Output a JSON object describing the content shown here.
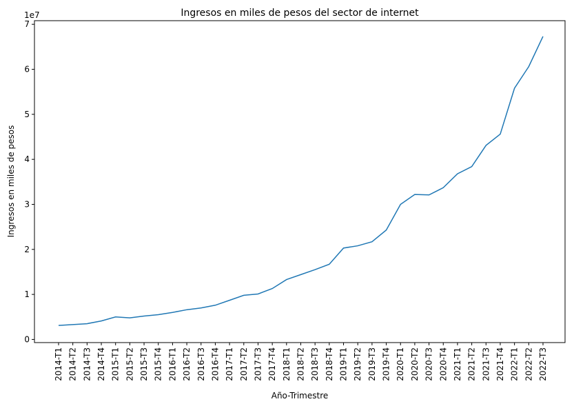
{
  "chart_data": {
    "type": "line",
    "title": "Ingresos en miles de pesos del sector de internet",
    "x_label": "Año-Trimestre",
    "y_label": "Ingresos en miles de pesos",
    "y_offset_label": "1e7",
    "categories": [
      "2014-T1",
      "2014-T2",
      "2014-T3",
      "2014-T4",
      "2015-T1",
      "2015-T2",
      "2015-T3",
      "2015-T4",
      "2016-T1",
      "2016-T2",
      "2016-T3",
      "2016-T4",
      "2017-T1",
      "2017-T2",
      "2017-T3",
      "2017-T4",
      "2018-T1",
      "2018-T2",
      "2018-T3",
      "2018-T4",
      "2019-T1",
      "2019-T2",
      "2019-T3",
      "2019-T4",
      "2020-T1",
      "2020-T2",
      "2020-T3",
      "2020-T4",
      "2021-T1",
      "2021-T2",
      "2021-T3",
      "2021-T4",
      "2022-T1",
      "2022-T2",
      "2022-T3"
    ],
    "series": [
      {
        "color": "#1f77b4",
        "values": [
          0.31,
          0.33,
          0.35,
          0.41,
          0.5,
          0.48,
          0.52,
          0.55,
          0.6,
          0.66,
          0.7,
          0.76,
          0.87,
          0.98,
          1.01,
          1.13,
          1.33,
          1.44,
          1.55,
          1.67,
          2.03,
          2.08,
          2.17,
          2.43,
          3.0,
          3.22,
          3.21,
          3.37,
          3.68,
          3.84,
          4.31,
          4.56,
          5.58,
          6.06,
          6.73
        ]
      }
    ],
    "ylim": [
      -0.07,
      7.08
    ],
    "yticks": [
      0,
      1,
      2,
      3,
      4,
      5,
      6,
      7
    ],
    "grid": false
  }
}
